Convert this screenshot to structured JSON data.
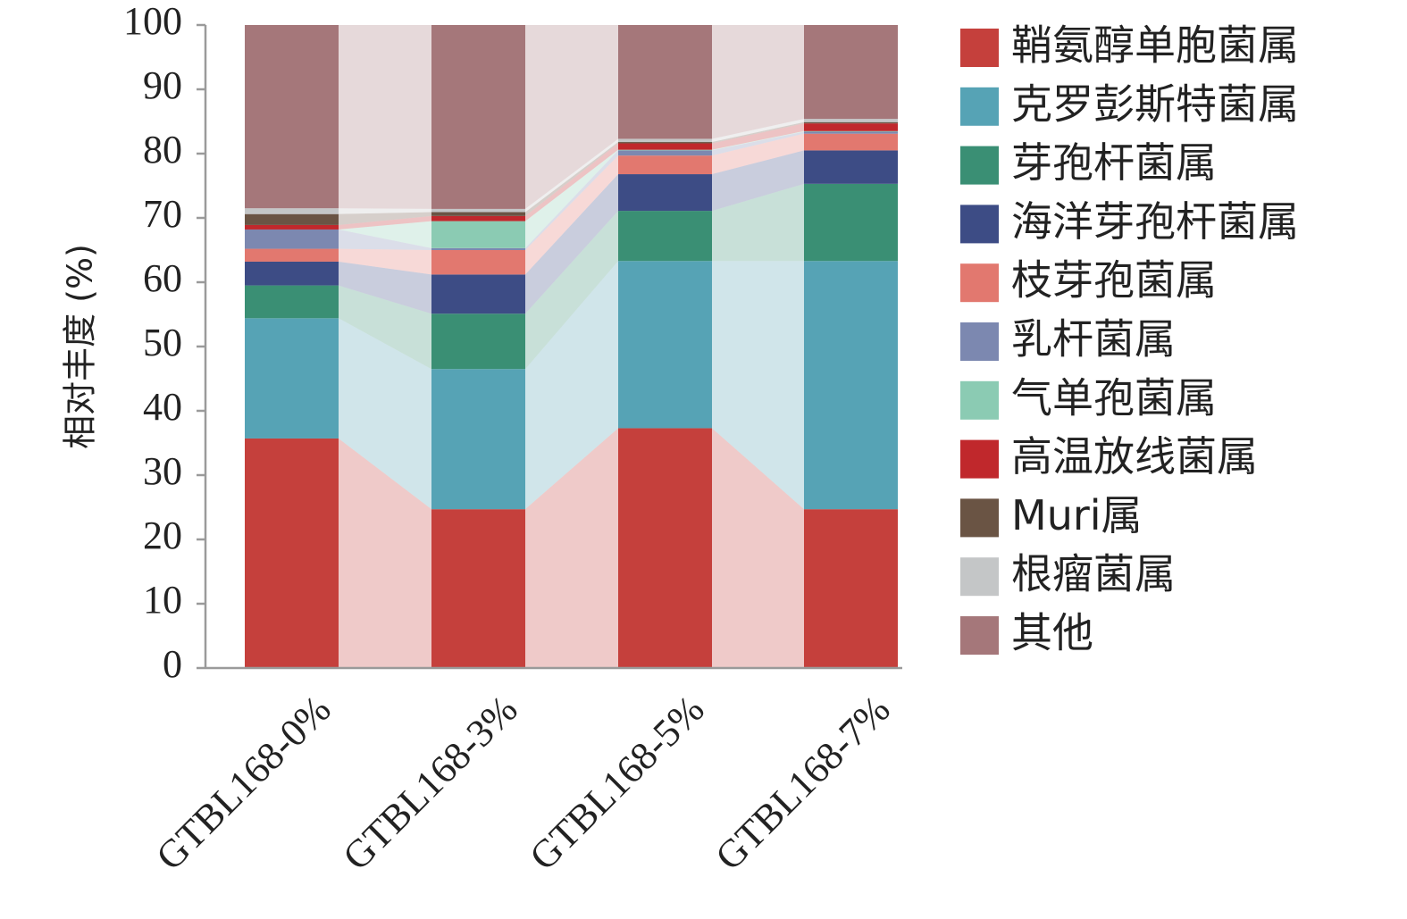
{
  "chart_data": {
    "type": "bar",
    "stacked": true,
    "title": "",
    "xlabel": "",
    "ylabel": "相对丰度 (%)",
    "ylim": [
      0,
      100
    ],
    "yticks": [
      0,
      10,
      20,
      30,
      40,
      50,
      60,
      70,
      80,
      90,
      100
    ],
    "categories": [
      "GTBL168-0%",
      "GTBL168-3%",
      "GTBL168-5%",
      "GTBL168-7%"
    ],
    "legend_position": "right",
    "series": [
      {
        "name": "鞘氨醇单胞菌属",
        "color": "#c5403c",
        "values": [
          35.7,
          24.7,
          37.3,
          24.7
        ]
      },
      {
        "name": "克罗彭斯特菌属",
        "color": "#56a3b5",
        "values": [
          18.7,
          21.8,
          26.0,
          38.6
        ]
      },
      {
        "name": "芽孢杆菌属",
        "color": "#3a8f74",
        "values": [
          5.1,
          8.6,
          7.8,
          12.0
        ]
      },
      {
        "name": "海洋芽孢杆菌属",
        "color": "#3d4c85",
        "values": [
          3.7,
          6.1,
          5.7,
          5.2
        ]
      },
      {
        "name": "枝芽孢菌属",
        "color": "#e2786f",
        "values": [
          2.0,
          3.8,
          2.9,
          2.6
        ]
      },
      {
        "name": "乳杆菌属",
        "color": "#7c88b0",
        "values": [
          3.0,
          0.3,
          0.8,
          0.3
        ]
      },
      {
        "name": "气单孢菌属",
        "color": "#8bcbb3",
        "values": [
          0.0,
          4.2,
          0.1,
          0.1
        ]
      },
      {
        "name": "高温放线菌属",
        "color": "#c0282c",
        "values": [
          0.7,
          0.8,
          1.0,
          1.2
        ]
      },
      {
        "name": "Muri属",
        "color": "#6a5444",
        "values": [
          1.7,
          0.6,
          0.2,
          0.2
        ]
      },
      {
        "name": "根瘤菌属",
        "color": "#c4c6c7",
        "values": [
          0.9,
          0.5,
          0.5,
          0.5
        ]
      },
      {
        "name": "其他",
        "color": "#a5777a",
        "values": [
          28.5,
          28.6,
          17.7,
          14.6
        ]
      }
    ]
  }
}
